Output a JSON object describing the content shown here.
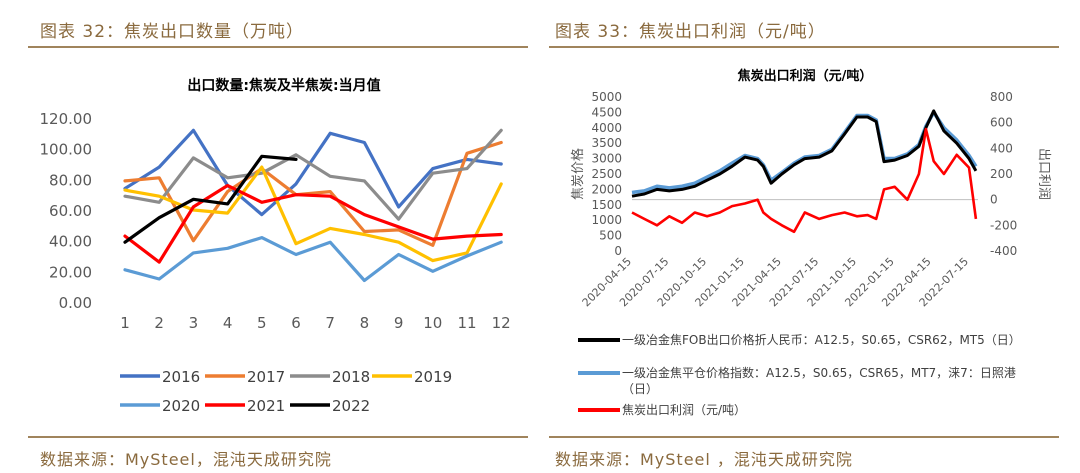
{
  "left_panel": {
    "figure_title": "图表 32：焦炭出口数量（万吨）",
    "source": "数据来源：MySteel，混沌天成研究院"
  },
  "right_panel": {
    "figure_title": "图表 33：焦炭出口利润（元/吨）",
    "source": "数据来源：MySteel ，混沌天成研究院"
  },
  "chart_data": [
    {
      "type": "line",
      "title": "出口数量:焦炭及半焦炭:当月值",
      "categories": [
        "1",
        "2",
        "3",
        "4",
        "5",
        "6",
        "7",
        "8",
        "9",
        "10",
        "11",
        "12"
      ],
      "y_ticks": [
        "0.00",
        "20.00",
        "40.00",
        "60.00",
        "80.00",
        "100.00",
        "120.00"
      ],
      "ylim": [
        0,
        120
      ],
      "grid": false,
      "legend": "bottom",
      "series": [
        {
          "name": "2016",
          "color": "#4472c4",
          "values": [
            74,
            88,
            112,
            76,
            57,
            77,
            110,
            104,
            62,
            87,
            93,
            90
          ]
        },
        {
          "name": "2017",
          "color": "#ed7d31",
          "values": [
            79,
            81,
            40,
            72,
            87,
            70,
            72,
            46,
            47,
            37,
            97,
            104
          ]
        },
        {
          "name": "2018",
          "color": "#8c8c8c",
          "values": [
            69,
            65,
            94,
            81,
            84,
            96,
            82,
            79,
            54,
            84,
            87,
            112
          ]
        },
        {
          "name": "2019",
          "color": "#ffc000",
          "values": [
            73,
            69,
            60,
            58,
            88,
            38,
            48,
            44,
            39,
            27,
            32,
            77
          ]
        },
        {
          "name": "2020",
          "color": "#5b9bd5",
          "values": [
            21,
            15,
            32,
            35,
            42,
            31,
            39,
            14,
            31,
            20,
            30,
            39
          ]
        },
        {
          "name": "2021",
          "color": "#ff0000",
          "values": [
            43,
            26,
            62,
            76,
            65,
            70,
            69,
            57,
            49,
            41,
            43,
            44
          ]
        },
        {
          "name": "2022",
          "color": "#000000",
          "values": [
            39,
            55,
            67,
            64,
            95,
            93,
            null,
            null,
            null,
            null,
            null,
            null
          ]
        }
      ]
    },
    {
      "type": "line",
      "title": "焦炭出口利润（元/吨）",
      "ylabel": "焦炭价格",
      "y2label": "出口利润",
      "x_ticks": [
        "2020-04-15",
        "2020-07-15",
        "2020-10-15",
        "2021-01-15",
        "2021-04-15",
        "2021-07-15",
        "2021-10-15",
        "2022-01-15",
        "2022-04-15",
        "2022-07-15"
      ],
      "y_ticks": [
        "0",
        "500",
        "1000",
        "1500",
        "2000",
        "2500",
        "3000",
        "3500",
        "4000",
        "4500",
        "5000"
      ],
      "y2_ticks": [
        "-400",
        "-200",
        "0",
        "200",
        "400",
        "600",
        "800"
      ],
      "ylim": [
        0,
        5000
      ],
      "y2lim": [
        -400,
        800
      ],
      "grid": false,
      "legend": "bottom",
      "series": [
        {
          "name": "一级冶金焦FOB出口价格折人民币：A12.5，S0.65，CSR62，MT5（日）",
          "axis": "left",
          "color": "#000000",
          "x": [
            "2020-04-15",
            "2020-05-15",
            "2020-06-15",
            "2020-07-15",
            "2020-08-15",
            "2020-09-15",
            "2020-10-15",
            "2020-11-15",
            "2020-12-15",
            "2021-01-15",
            "2021-02-15",
            "2021-03-01",
            "2021-03-20",
            "2021-04-15",
            "2021-05-15",
            "2021-06-10",
            "2021-07-15",
            "2021-08-15",
            "2021-09-15",
            "2021-10-15",
            "2021-11-10",
            "2021-12-01",
            "2021-12-20",
            "2022-01-15",
            "2022-02-15",
            "2022-03-15",
            "2022-04-01",
            "2022-04-20",
            "2022-05-15",
            "2022-06-15",
            "2022-07-15",
            "2022-08-01"
          ],
          "values": [
            1780,
            1850,
            2000,
            1950,
            2000,
            2100,
            2300,
            2500,
            2750,
            3050,
            2950,
            2750,
            2200,
            2500,
            2800,
            3000,
            3050,
            3250,
            3800,
            4350,
            4350,
            4200,
            2900,
            2950,
            3100,
            3400,
            4000,
            4550,
            3900,
            3500,
            3000,
            2600
          ]
        },
        {
          "name": "一级冶金焦平仓价格指数：A12.5，S0.65，CSR65，MT7，涞7：日照港（日）",
          "axis": "left",
          "color": "#5b9bd5",
          "x": [
            "2020-04-15",
            "2020-05-15",
            "2020-06-15",
            "2020-07-15",
            "2020-08-15",
            "2020-09-15",
            "2020-10-15",
            "2020-11-15",
            "2020-12-15",
            "2021-01-15",
            "2021-02-15",
            "2021-03-01",
            "2021-03-20",
            "2021-04-15",
            "2021-05-15",
            "2021-06-10",
            "2021-07-15",
            "2021-08-15",
            "2021-09-15",
            "2021-10-15",
            "2021-11-10",
            "2021-12-01",
            "2021-12-20",
            "2022-01-15",
            "2022-02-15",
            "2022-03-15",
            "2022-04-01",
            "2022-04-20",
            "2022-05-15",
            "2022-06-15",
            "2022-07-15",
            "2022-08-01"
          ],
          "values": [
            1900,
            1950,
            2100,
            2050,
            2100,
            2200,
            2400,
            2600,
            2850,
            3100,
            3000,
            2800,
            2300,
            2550,
            2850,
            3050,
            3100,
            3300,
            3850,
            4400,
            4400,
            4250,
            3000,
            3000,
            3150,
            3450,
            4050,
            4500,
            4000,
            3600,
            3100,
            2750
          ]
        },
        {
          "name": "焦炭出口利润（元/吨）",
          "axis": "right",
          "color": "#ff0000",
          "x": [
            "2020-04-15",
            "2020-05-15",
            "2020-06-15",
            "2020-07-15",
            "2020-08-15",
            "2020-09-15",
            "2020-10-15",
            "2020-11-15",
            "2020-12-15",
            "2021-01-15",
            "2021-02-15",
            "2021-03-01",
            "2021-03-20",
            "2021-04-15",
            "2021-05-15",
            "2021-06-10",
            "2021-07-15",
            "2021-08-15",
            "2021-09-15",
            "2021-10-15",
            "2021-11-10",
            "2021-12-01",
            "2021-12-20",
            "2022-01-15",
            "2022-02-15",
            "2022-03-15",
            "2022-04-01",
            "2022-04-20",
            "2022-05-15",
            "2022-06-15",
            "2022-07-15",
            "2022-08-01"
          ],
          "values": [
            -100,
            -150,
            -200,
            -130,
            -180,
            -100,
            -130,
            -100,
            -50,
            -30,
            0,
            -100,
            -150,
            -200,
            -250,
            -100,
            -150,
            -120,
            -100,
            -130,
            -120,
            -150,
            80,
            100,
            0,
            200,
            550,
            300,
            200,
            350,
            250,
            -150
          ]
        }
      ]
    }
  ]
}
